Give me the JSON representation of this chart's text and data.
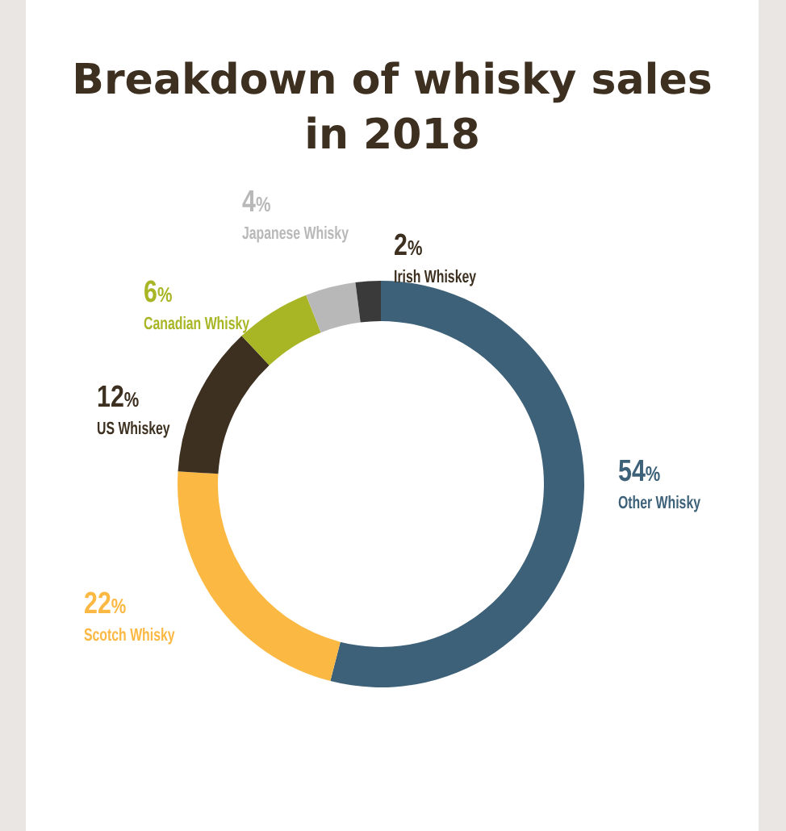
{
  "chart_data": {
    "type": "donut",
    "title": "Breakdown of whisky sales in 2018",
    "categories": [
      "Other Whisky",
      "Scotch Whisky",
      "US Whiskey",
      "Canadian Whisky",
      "Japanese Whisky",
      "Irish Whiskey"
    ],
    "values": [
      54,
      22,
      12,
      6,
      4,
      2
    ],
    "colors": [
      "#3d6178",
      "#fbb843",
      "#3d3020",
      "#a8b625",
      "#b8b8b8",
      "#3a3a3a"
    ],
    "value_labels": [
      "54%",
      "22%",
      "12%",
      "6%",
      "4%",
      "2%"
    ]
  }
}
